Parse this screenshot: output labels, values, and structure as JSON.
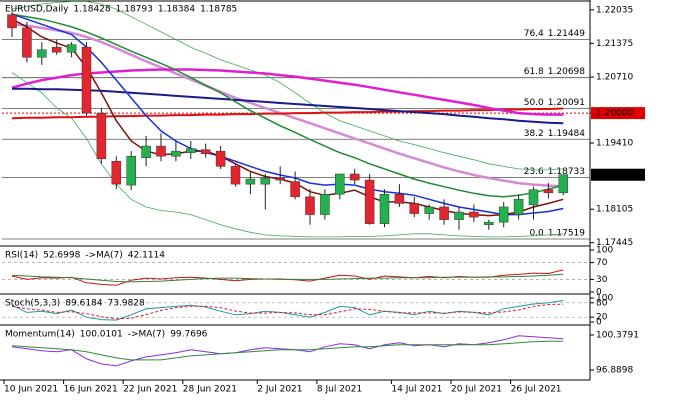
{
  "chart_data": [
    {
      "type": "candlestick",
      "symbol": "EURUSD,Daily",
      "categories": [
        "10 Jun 2021",
        null,
        null,
        null,
        "16 Jun 2021",
        null,
        null,
        null,
        "22 Jun 2021",
        null,
        null,
        null,
        "28 Jun 2021",
        null,
        null,
        null,
        null,
        "2 Jul 2021",
        null,
        null,
        null,
        "8 Jul 2021",
        null,
        null,
        null,
        null,
        "14 Jul 2021",
        null,
        null,
        null,
        "20 Jul 2021",
        null,
        null,
        null,
        "26 Jul 2021",
        null,
        null,
        null
      ],
      "open": [
        1.2194,
        1.2168,
        1.211,
        1.213,
        1.212,
        1.213,
        1.2,
        1.1905,
        1.1858,
        1.1912,
        1.1935,
        1.1915,
        1.1922,
        1.1928,
        1.1925,
        1.1895,
        1.186,
        1.186,
        1.1872,
        1.1865,
        1.1835,
        1.18,
        1.184,
        1.188,
        1.1868,
        1.1782,
        1.184,
        1.1822,
        1.1802,
        1.1815,
        1.179,
        1.1805,
        1.178,
        1.1785,
        1.18,
        1.1819,
        1.1849,
        1.18428
      ],
      "high": [
        1.22,
        1.218,
        1.214,
        1.2145,
        1.214,
        1.214,
        1.201,
        1.1915,
        1.1925,
        1.1955,
        1.196,
        1.1945,
        1.1945,
        1.194,
        1.1935,
        1.19,
        1.1885,
        1.188,
        1.1895,
        1.1885,
        1.185,
        1.185,
        1.188,
        1.189,
        1.188,
        1.185,
        1.186,
        1.1835,
        1.182,
        1.183,
        1.1815,
        1.182,
        1.179,
        1.1825,
        1.184,
        1.1855,
        1.1862,
        1.18793
      ],
      "low": [
        1.215,
        1.21,
        1.2095,
        1.2115,
        1.211,
        1.1995,
        1.19,
        1.185,
        1.1848,
        1.1895,
        1.1905,
        1.1905,
        1.191,
        1.1912,
        1.189,
        1.1855,
        1.184,
        1.181,
        1.186,
        1.183,
        1.178,
        1.179,
        1.183,
        1.186,
        1.178,
        1.1775,
        1.1815,
        1.1795,
        1.179,
        1.178,
        1.177,
        1.1785,
        1.177,
        1.1775,
        1.179,
        1.179,
        1.1832,
        1.18384
      ],
      "close": [
        1.2168,
        1.211,
        1.2125,
        1.212,
        1.2135,
        1.2,
        1.191,
        1.186,
        1.1915,
        1.1935,
        1.1915,
        1.1925,
        1.193,
        1.192,
        1.1895,
        1.186,
        1.187,
        1.1872,
        1.1868,
        1.1835,
        1.18,
        1.184,
        1.188,
        1.1868,
        1.1782,
        1.184,
        1.1822,
        1.1802,
        1.1815,
        1.179,
        1.1805,
        1.1795,
        1.1785,
        1.1815,
        1.183,
        1.1849,
        1.18428,
        1.18785
      ],
      "up_color": "#22b14c",
      "down_color": "#e3262d",
      "lines": [
        {
          "color": "#d48ad8",
          "width": 2.5,
          "values": [
            1.2175,
            1.2172,
            1.2168,
            1.2163,
            1.2158,
            1.215,
            1.214,
            1.2128,
            1.2115,
            1.2102,
            1.209,
            1.2078,
            1.2066,
            1.2054,
            1.2042,
            1.203,
            1.202,
            1.201,
            1.2,
            1.199,
            1.198,
            1.197,
            1.196,
            1.195,
            1.194,
            1.193,
            1.192,
            1.1911,
            1.1902,
            1.1893,
            1.1885,
            1.1878,
            1.1872,
            1.1867,
            1.1862,
            1.1859,
            1.1857,
            1.1856
          ]
        },
        {
          "color": "#3cab5a",
          "width": 0.8,
          "values": [
            1.2205,
            1.221,
            1.2215,
            1.2218,
            1.222,
            1.222,
            1.2215,
            1.2205,
            1.219,
            1.2175,
            1.216,
            1.2145,
            1.213,
            1.2118,
            1.2105,
            1.2095,
            1.2085,
            1.2075,
            1.206,
            1.204,
            1.202,
            1.2,
            1.1985,
            1.1975,
            1.1965,
            1.1955,
            1.1945,
            1.1938,
            1.193,
            1.1922,
            1.1915,
            1.1908,
            1.19,
            1.1895,
            1.189,
            1.1888,
            1.1888,
            1.189
          ]
        },
        {
          "color": "#3cab5a",
          "width": 0.8,
          "values": [
            1.208,
            1.206,
            1.204,
            1.201,
            1.199,
            1.195,
            1.19,
            1.186,
            1.183,
            1.1815,
            1.1808,
            1.1805,
            1.18,
            1.179,
            1.178,
            1.1772,
            1.1765,
            1.176,
            1.1758,
            1.1757,
            1.1756,
            1.1756,
            1.1756,
            1.1757,
            1.1757,
            1.1758,
            1.176,
            1.1762,
            1.1762,
            1.176,
            1.1758,
            1.1757,
            1.1756,
            1.1756,
            1.1757,
            1.1758,
            1.176,
            1.1762
          ]
        },
        {
          "color": "#e01010",
          "width": 2,
          "values": [
            1.199,
            1.1991,
            1.1991,
            1.1992,
            1.1992,
            1.1993,
            1.1993,
            1.1994,
            1.1994,
            1.1995,
            1.1995,
            1.1996,
            1.1996,
            1.1997,
            1.1997,
            1.1998,
            1.1998,
            1.1999,
            1.1999,
            1.2,
            1.2,
            1.2001,
            1.2001,
            1.2002,
            1.2002,
            1.2003,
            1.2003,
            1.2004,
            1.2004,
            1.2005,
            1.2005,
            1.2006,
            1.2006,
            1.2007,
            1.2007,
            1.2008,
            1.2008,
            1.2009
          ]
        },
        {
          "color": "#e020d0",
          "width": 2.5,
          "values": [
            1.205,
            1.2058,
            1.2065,
            1.207,
            1.2075,
            1.2078,
            1.208,
            1.2082,
            1.2084,
            1.2085,
            1.2086,
            1.2086,
            1.2086,
            1.2085,
            1.2084,
            1.2082,
            1.208,
            1.2078,
            1.2075,
            1.2072,
            1.2068,
            1.2064,
            1.206,
            1.2056,
            1.2051,
            1.2046,
            1.2041,
            1.2036,
            1.2031,
            1.2026,
            1.2021,
            1.2016,
            1.201,
            1.2005,
            1.2,
            1.1998,
            1.1997,
            1.1997
          ]
        },
        {
          "color": "#1a1a8c",
          "width": 2,
          "values": [
            1.2048,
            1.2048,
            1.2047,
            1.2047,
            1.2046,
            1.2045,
            1.2044,
            1.2042,
            1.204,
            1.2038,
            1.2036,
            1.2034,
            1.2032,
            1.203,
            1.2028,
            1.2026,
            1.2024,
            1.2022,
            1.202,
            1.2018,
            1.2016,
            1.2014,
            1.2012,
            1.201,
            1.2008,
            1.2006,
            1.2004,
            1.2002,
            1.2,
            1.1998,
            1.1995,
            1.1993,
            1.199,
            1.1988,
            1.1985,
            1.1983,
            1.1981,
            1.198
          ]
        },
        {
          "color": "#1e8a2e",
          "width": 1.5,
          "values": [
            1.2195,
            1.219,
            1.2185,
            1.2178,
            1.217,
            1.216,
            1.2148,
            1.2135,
            1.2122,
            1.211,
            1.2098,
            1.2085,
            1.207,
            1.2055,
            1.204,
            1.2022,
            1.2005,
            1.199,
            1.1975,
            1.1962,
            1.1948,
            1.1935,
            1.1922,
            1.1912,
            1.19,
            1.189,
            1.188,
            1.187,
            1.1862,
            1.1855,
            1.1848,
            1.1842,
            1.1837,
            1.1835,
            1.1838,
            1.1843,
            1.185,
            1.1858
          ]
        },
        {
          "color": "#1530e0",
          "width": 1.5,
          "values": [
            1.2195,
            1.2185,
            1.2175,
            1.2165,
            1.2155,
            1.213,
            1.21,
            1.2065,
            1.203,
            1.1995,
            1.1965,
            1.1945,
            1.193,
            1.1922,
            1.1915,
            1.1905,
            1.1895,
            1.1885,
            1.1878,
            1.1872,
            1.1862,
            1.1858,
            1.186,
            1.1858,
            1.185,
            1.1845,
            1.1842,
            1.1838,
            1.183,
            1.1822,
            1.1815,
            1.181,
            1.1805,
            1.18,
            1.18,
            1.1803,
            1.1806,
            1.1812
          ]
        },
        {
          "color": "#7a1010",
          "width": 1.5,
          "values": [
            1.2185,
            1.217,
            1.215,
            1.2138,
            1.2128,
            1.209,
            1.204,
            1.1985,
            1.1945,
            1.1925,
            1.1918,
            1.192,
            1.1925,
            1.1925,
            1.1915,
            1.19,
            1.1885,
            1.1875,
            1.187,
            1.1862,
            1.1845,
            1.1838,
            1.1842,
            1.1848,
            1.1835,
            1.1825,
            1.1825,
            1.1822,
            1.1815,
            1.1808,
            1.1802,
            1.18,
            1.1798,
            1.18,
            1.1805,
            1.1815,
            1.1822,
            1.183
          ]
        }
      ],
      "fib": [
        {
          "label": "76.4",
          "price": 1.21449
        },
        {
          "label": "61.8",
          "price": 1.20698
        },
        {
          "label": "50.0",
          "price": 1.20091
        },
        {
          "label": "38.2",
          "price": 1.19484
        },
        {
          "label": "23.6",
          "price": 1.18733
        },
        {
          "label": "0.0",
          "price": 1.17519
        }
      ],
      "ylim": [
        1.174,
        1.2219
      ],
      "yticks": [
        1.22035,
        1.21375,
        {
          "value": 1.2071,
          "label": "1.20710"
        },
        {
          "value": 1.2,
          "label": "1.20000",
          "highlight": "#e00000"
        },
        {
          "value": 1.1941,
          "label": "1.19410"
        },
        1.18105,
        1.17445
      ]
    },
    {
      "type": "line",
      "ylim": [
        0,
        100
      ],
      "yticks": [
        100,
        70,
        30,
        0
      ],
      "grid": true,
      "series": [
        {
          "name": "RSI(14)",
          "color": "#c81414",
          "values": [
            38,
            30,
            34,
            33,
            35,
            22,
            18,
            16,
            28,
            33,
            31,
            34,
            35,
            33,
            30,
            27,
            30,
            31,
            31,
            29,
            26,
            33,
            40,
            38,
            30,
            38,
            36,
            34,
            37,
            34,
            37,
            35,
            35,
            40,
            42,
            45,
            44,
            52.6998
          ]
        },
        {
          "name": "->MA(7)",
          "color": "#3a7d3a",
          "values": [
            40,
            38,
            36,
            35,
            34,
            31,
            28,
            25,
            24,
            25,
            26,
            28,
            30,
            32,
            33,
            33,
            32,
            31,
            30,
            30,
            30,
            30,
            31,
            32,
            33,
            33,
            34,
            34,
            34,
            35,
            35,
            35,
            36,
            36,
            37,
            38,
            40,
            42.1114
          ]
        }
      ]
    },
    {
      "type": "line",
      "ylim": [
        0,
        100
      ],
      "yticks": [
        100,
        80,
        20,
        0
      ],
      "grid": true,
      "series": [
        {
          "name": "Stoch(5,3,3)",
          "color": "#1f9aa8",
          "values": [
            70,
            40,
            45,
            35,
            50,
            20,
            10,
            8,
            30,
            55,
            60,
            65,
            70,
            62,
            45,
            30,
            35,
            45,
            40,
            30,
            20,
            40,
            65,
            60,
            30,
            45,
            40,
            30,
            45,
            35,
            45,
            40,
            30,
            55,
            65,
            75,
            80,
            89.6184
          ]
        },
        {
          "color": "#e02020",
          "dash": true,
          "values": [
            65,
            55,
            50,
            40,
            43,
            35,
            22,
            13,
            16,
            31,
            48,
            60,
            65,
            66,
            59,
            46,
            37,
            37,
            40,
            38,
            30,
            30,
            42,
            55,
            52,
            45,
            38,
            38,
            38,
            37,
            42,
            40,
            38,
            42,
            50,
            65,
            73,
            73.9828
          ]
        }
      ]
    },
    {
      "type": "line",
      "ylim": [
        96.8898,
        100.3791
      ],
      "yticks": [
        100.3791,
        96.8898
      ],
      "grid": true,
      "series": [
        {
          "name": "Momentum(14)",
          "color": "#8a2be2",
          "values": [
            99.2,
            99.0,
            98.8,
            98.7,
            98.9,
            98.0,
            97.5,
            97.3,
            97.8,
            98.2,
            98.4,
            98.6,
            98.9,
            98.7,
            98.5,
            98.6,
            98.9,
            99.1,
            99.0,
            98.9,
            98.7,
            99.2,
            99.5,
            99.4,
            99.0,
            99.4,
            99.6,
            99.3,
            99.4,
            99.2,
            99.5,
            99.4,
            99.6,
            99.9,
            100.3,
            100.2,
            100.1,
            100.0101
          ]
        },
        {
          "name": "->MA(7)",
          "color": "#2e8b3a",
          "values": [
            99.3,
            99.2,
            99.1,
            99.0,
            98.9,
            98.7,
            98.4,
            98.1,
            97.9,
            97.9,
            97.9,
            98.1,
            98.3,
            98.4,
            98.5,
            98.6,
            98.7,
            98.8,
            98.9,
            98.9,
            98.9,
            99.0,
            99.1,
            99.2,
            99.2,
            99.3,
            99.4,
            99.4,
            99.4,
            99.4,
            99.4,
            99.4,
            99.4,
            99.5,
            99.6,
            99.7,
            99.75,
            99.7696
          ]
        }
      ]
    }
  ]
}
